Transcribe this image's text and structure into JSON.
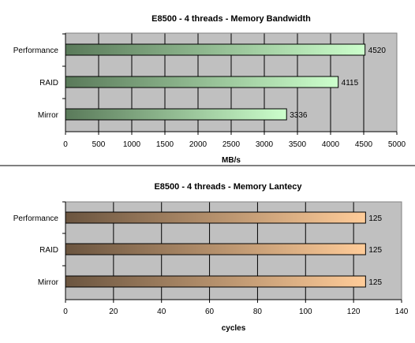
{
  "chart_data": [
    {
      "type": "bar",
      "orientation": "horizontal",
      "title": "E8500 - 4 threads - Memory Bandwidth",
      "xlabel": "MB/s",
      "ylabel": "",
      "categories": [
        "Performance",
        "RAID",
        "Mirror"
      ],
      "values": [
        4520,
        4115,
        3336
      ],
      "value_labels": [
        "4520",
        "4115",
        "3336"
      ],
      "xlim": [
        0,
        5000
      ],
      "ticks": [
        0,
        500,
        1000,
        1500,
        2000,
        2500,
        3000,
        3500,
        4000,
        4500,
        5000
      ],
      "tick_labels": [
        "0",
        "500",
        "1000",
        "1500",
        "2000",
        "2500",
        "3000",
        "3500",
        "4000",
        "4500",
        "5000"
      ],
      "grid": true,
      "colors": {
        "plot_bg": "#c0c0c0",
        "gradient_start": "#5a7a5a",
        "gradient_end": "#ccffcc"
      }
    },
    {
      "type": "bar",
      "orientation": "horizontal",
      "title": "E8500 - 4 threads - Memory Lantecy",
      "xlabel": "cycles",
      "ylabel": "",
      "categories": [
        "Performance",
        "RAID",
        "Mirror"
      ],
      "values": [
        125,
        125,
        125
      ],
      "value_labels": [
        "125",
        "125",
        "125"
      ],
      "xlim": [
        0,
        140
      ],
      "ticks": [
        0,
        20,
        40,
        60,
        80,
        100,
        120,
        140
      ],
      "tick_labels": [
        "0",
        "20",
        "40",
        "60",
        "80",
        "100",
        "120",
        "140"
      ],
      "grid": true,
      "colors": {
        "plot_bg": "#c0c0c0",
        "gradient_start": "#6b5540",
        "gradient_end": "#ffcc99"
      }
    }
  ]
}
